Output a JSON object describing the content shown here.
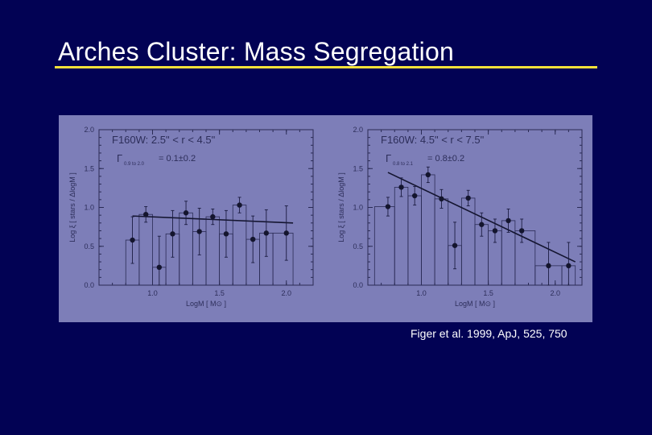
{
  "slide": {
    "title": "Arches Cluster: Mass Segregation",
    "caption": "Figer et al. 1999, ApJ, 525, 750",
    "colors": {
      "background": "#020254",
      "title_underline": "#f5e13a",
      "figure_background": "#7d7eb8",
      "ink": "#2a2b55"
    }
  },
  "chart_data": [
    {
      "type": "scatter",
      "title": "F160W: 2.5\" < r < 4.5\"",
      "annotation": "Γ",
      "annotation_subscript": "0.9 to 2.0",
      "annotation_value": "= 0.1±0.2",
      "xlabel": "LogM [ M⊙ ]",
      "ylabel": "Log ξ [ stars / ΔlogM ]",
      "xlim": [
        0.6,
        2.2
      ],
      "ylim": [
        0.0,
        2.0
      ],
      "xticks": [
        "1.0",
        "1.5",
        "2.0"
      ],
      "yticks": [
        "0.0",
        "0.5",
        "1.0",
        "1.5",
        "2.0"
      ],
      "grid": false,
      "series": [
        {
          "x": [
            0.85,
            0.95,
            1.05,
            1.15,
            1.25,
            1.35,
            1.45,
            1.55,
            1.65,
            1.75,
            1.85,
            2.0
          ],
          "y": [
            0.58,
            0.91,
            0.23,
            0.66,
            0.93,
            0.69,
            0.88,
            0.66,
            1.03,
            0.59,
            0.67,
            0.67
          ],
          "yerr": [
            0.3,
            0.1,
            0.4,
            0.3,
            0.15,
            0.3,
            0.1,
            0.3,
            0.1,
            0.3,
            0.3,
            0.35
          ]
        }
      ],
      "histogram": {
        "edges": [
          0.8,
          0.9,
          1.0,
          1.1,
          1.2,
          1.3,
          1.4,
          1.5,
          1.6,
          1.7,
          1.8,
          1.9,
          2.05
        ],
        "heights": [
          0.58,
          0.91,
          0.23,
          0.66,
          0.93,
          0.69,
          0.88,
          0.66,
          1.03,
          0.59,
          0.67,
          0.67
        ]
      },
      "fit": {
        "x": [
          0.85,
          2.05
        ],
        "y": [
          0.89,
          0.8
        ]
      }
    },
    {
      "type": "scatter",
      "title": "F160W: 4.5\" < r < 7.5\"",
      "annotation": "Γ",
      "annotation_subscript": "0.8 to 2.1",
      "annotation_value": "= 0.8±0.2",
      "xlabel": "LogM [ M⊙ ]",
      "ylabel": "Log ξ [ stars / ΔlogM ]",
      "xlim": [
        0.6,
        2.2
      ],
      "ylim": [
        0.0,
        2.0
      ],
      "xticks": [
        "1.0",
        "1.5",
        "2.0"
      ],
      "yticks": [
        "0.0",
        "0.5",
        "1.0",
        "1.5",
        "2.0"
      ],
      "grid": false,
      "series": [
        {
          "x": [
            0.75,
            0.85,
            0.95,
            1.05,
            1.15,
            1.25,
            1.35,
            1.45,
            1.55,
            1.65,
            1.75,
            1.95,
            2.1
          ],
          "y": [
            1.01,
            1.26,
            1.15,
            1.42,
            1.11,
            0.51,
            1.12,
            0.78,
            0.7,
            0.83,
            0.7,
            0.25,
            0.25
          ],
          "yerr": [
            0.12,
            0.12,
            0.12,
            0.1,
            0.12,
            0.3,
            0.1,
            0.15,
            0.15,
            0.15,
            0.15,
            0.3,
            0.3
          ]
        }
      ],
      "histogram": {
        "edges": [
          0.65,
          0.8,
          0.9,
          1.0,
          1.1,
          1.2,
          1.3,
          1.4,
          1.5,
          1.6,
          1.7,
          1.85,
          2.05,
          2.15
        ],
        "heights": [
          1.01,
          1.26,
          1.15,
          1.42,
          1.11,
          0.51,
          1.12,
          0.78,
          0.7,
          0.83,
          0.7,
          0.25,
          0.25
        ]
      },
      "fit": {
        "x": [
          0.75,
          2.15
        ],
        "y": [
          1.45,
          0.3
        ]
      }
    }
  ]
}
